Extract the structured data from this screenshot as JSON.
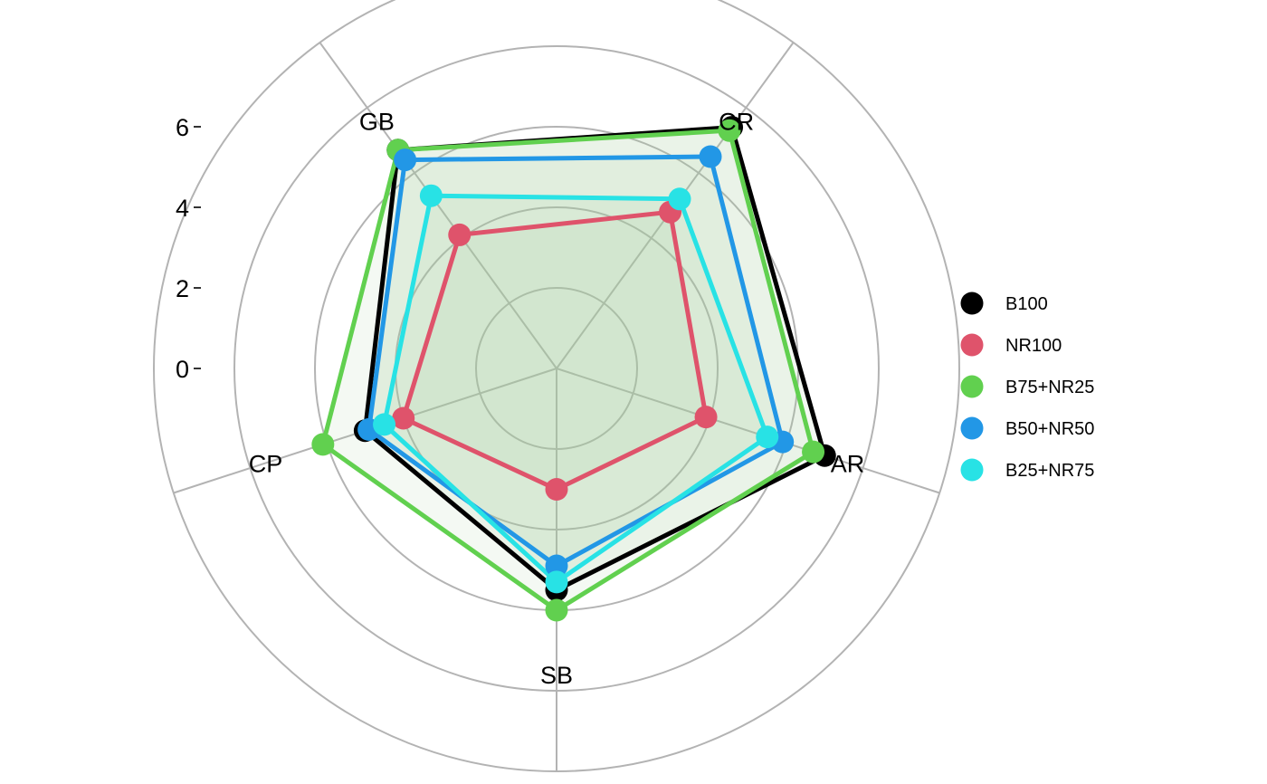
{
  "chart_data": {
    "type": "radar",
    "axes": [
      "CR",
      "AR",
      "SB",
      "CP",
      "GB"
    ],
    "r_ticks": [
      "0",
      "2",
      "4",
      "6"
    ],
    "r_tick_values": [
      0,
      2,
      4,
      6
    ],
    "r_inner_offset": -2,
    "r_max": 8,
    "grid": true,
    "legend_position": "right",
    "series": [
      {
        "name": "B100",
        "color": "#000000",
        "values": [
          5.4,
          5.0,
          3.5,
          3.0,
          4.7
        ]
      },
      {
        "name": "NR100",
        "color": "#DF536B",
        "values": [
          2.8,
          1.9,
          1.0,
          2.0,
          2.1
        ]
      },
      {
        "name": "B75+NR25",
        "color": "#61D04F",
        "values": [
          5.3,
          4.7,
          4.0,
          4.1,
          4.7
        ]
      },
      {
        "name": "B50+NR50",
        "color": "#2297E6",
        "values": [
          4.5,
          3.9,
          2.9,
          2.9,
          4.4
        ]
      },
      {
        "name": "B25+NR75",
        "color": "#28E2E5",
        "values": [
          3.2,
          3.5,
          3.3,
          2.5,
          3.3
        ]
      }
    ],
    "fill_color": "#a8cfa0"
  }
}
